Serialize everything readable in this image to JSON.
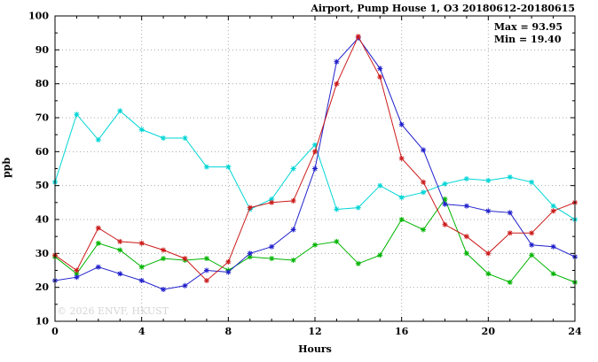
{
  "title": "Airport, Pump House 1, O3 20180612-20180615",
  "annotation": {
    "max_label": "Max = 93.95",
    "min_label": "Min = 19.40"
  },
  "watermark": "© 2026 ENVF, HKUST",
  "chart_data": {
    "type": "line",
    "title": "Airport, Pump House 1, O3 20180612-20180615",
    "xlabel": "Hours",
    "ylabel": "ppb",
    "xlim": [
      0,
      24
    ],
    "ylim": [
      10,
      100
    ],
    "x_ticks": [
      0,
      4,
      8,
      12,
      16,
      20,
      24
    ],
    "y_ticks": [
      10,
      20,
      30,
      40,
      50,
      60,
      70,
      80,
      90,
      100
    ],
    "grid": true,
    "legend": "none",
    "marker": "asterisk",
    "x": [
      0,
      1,
      2,
      3,
      4,
      5,
      6,
      7,
      8,
      9,
      10,
      11,
      12,
      13,
      14,
      15,
      16,
      17,
      18,
      19,
      20,
      21,
      22,
      23,
      24
    ],
    "series": [
      {
        "name": "series-cyan",
        "color": "#00d5d5",
        "values": [
          51,
          71,
          63.5,
          72,
          66.5,
          64,
          64,
          55.5,
          55.5,
          43,
          46,
          55,
          62,
          43,
          43.5,
          50,
          46.5,
          48,
          50.5,
          52,
          51.5,
          52.5,
          51,
          44,
          40
        ]
      },
      {
        "name": "series-green",
        "color": "#00b400",
        "values": [
          29,
          24,
          33,
          31,
          26,
          28.5,
          28,
          28.5,
          25,
          29,
          28.5,
          28,
          32.5,
          33.5,
          27,
          29.5,
          40,
          37,
          46,
          30,
          24,
          21.5,
          29.5,
          24,
          21.5
        ]
      },
      {
        "name": "series-blue",
        "color": "#2020cc",
        "values": [
          22,
          23,
          26,
          24,
          22,
          19.4,
          20.5,
          25,
          24.5,
          30,
          32,
          37,
          55,
          86.5,
          93.5,
          84.5,
          68,
          60.5,
          44.5,
          44,
          42.5,
          42,
          32.5,
          32,
          29
        ]
      },
      {
        "name": "series-red",
        "color": "#cc1a1a",
        "values": [
          29.5,
          25,
          37.5,
          33.5,
          33,
          31,
          28.5,
          22,
          27.5,
          43.5,
          45,
          45.5,
          60,
          80,
          93.95,
          82,
          58,
          51,
          38.5,
          35,
          30,
          36,
          36,
          42.5,
          45
        ]
      }
    ],
    "stats": {
      "max": 93.95,
      "min": 19.4
    }
  }
}
